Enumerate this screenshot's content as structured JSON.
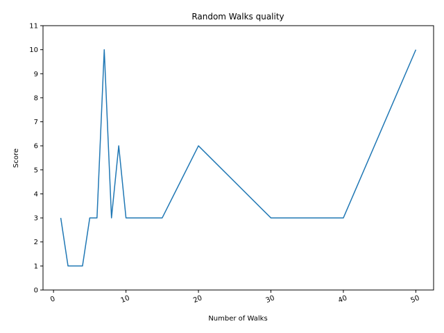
{
  "chart_data": {
    "type": "line",
    "title": "Random Walks quality",
    "xlabel": "Number of Walks",
    "ylabel": "Score",
    "xlim": [
      -1.45,
      52.45
    ],
    "ylim": [
      0,
      11
    ],
    "xticks": [
      0,
      10,
      20,
      30,
      40,
      50
    ],
    "yticks": [
      0,
      1,
      2,
      3,
      4,
      5,
      6,
      7,
      8,
      9,
      10,
      11
    ],
    "grid": false,
    "series": [
      {
        "color": "#1f77b4",
        "x": [
          1,
          2,
          3,
          4,
          5,
          6,
          7,
          8,
          9,
          10,
          15,
          20,
          30,
          40,
          50
        ],
        "y": [
          3,
          1,
          1,
          1,
          3,
          3,
          10,
          3,
          6,
          3,
          3,
          6,
          3,
          3,
          10
        ]
      }
    ]
  }
}
